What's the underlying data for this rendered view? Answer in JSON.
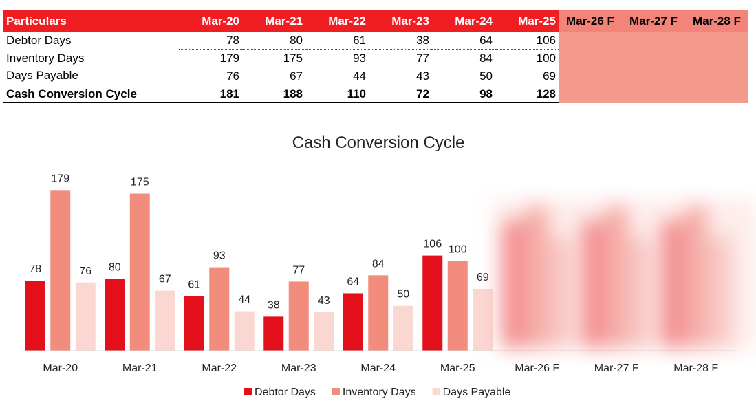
{
  "table": {
    "headers": [
      "Particulars",
      "Mar-20",
      "Mar-21",
      "Mar-22",
      "Mar-23",
      "Mar-24",
      "Mar-25",
      "Mar-26 F",
      "Mar-27 F",
      "Mar-28 F"
    ],
    "rows": [
      {
        "label": "Debtor Days",
        "values": [
          "78",
          "80",
          "61",
          "38",
          "64",
          "106"
        ]
      },
      {
        "label": "Inventory Days",
        "values": [
          "179",
          "175",
          "93",
          "77",
          "84",
          "100"
        ]
      },
      {
        "label": "Days Payable",
        "values": [
          "76",
          "67",
          "44",
          "43",
          "50",
          "69"
        ]
      },
      {
        "label": "Cash Conversion Cycle",
        "values": [
          "181",
          "188",
          "110",
          "72",
          "98",
          "128"
        ],
        "bold": true
      }
    ]
  },
  "chart_data": {
    "type": "bar",
    "title": "Cash Conversion Cycle",
    "categories": [
      "Mar-20",
      "Mar-21",
      "Mar-22",
      "Mar-23",
      "Mar-24",
      "Mar-25",
      "Mar-26 F",
      "Mar-27 F",
      "Mar-28 F"
    ],
    "series": [
      {
        "name": "Debtor Days",
        "values": [
          78,
          80,
          61,
          38,
          64,
          106,
          null,
          null,
          null
        ],
        "color": "#e3101b"
      },
      {
        "name": "Inventory Days",
        "values": [
          179,
          175,
          93,
          77,
          84,
          100,
          null,
          null,
          null
        ],
        "color": "#f28c7d"
      },
      {
        "name": "Days Payable",
        "values": [
          76,
          67,
          44,
          43,
          50,
          69,
          null,
          null,
          null
        ],
        "color": "#fbd7d2"
      }
    ],
    "ylim": [
      0,
      180
    ],
    "grid": false,
    "legend_position": "bottom",
    "obscured_categories": [
      "Mar-26 F",
      "Mar-27 F",
      "Mar-28 F"
    ]
  }
}
